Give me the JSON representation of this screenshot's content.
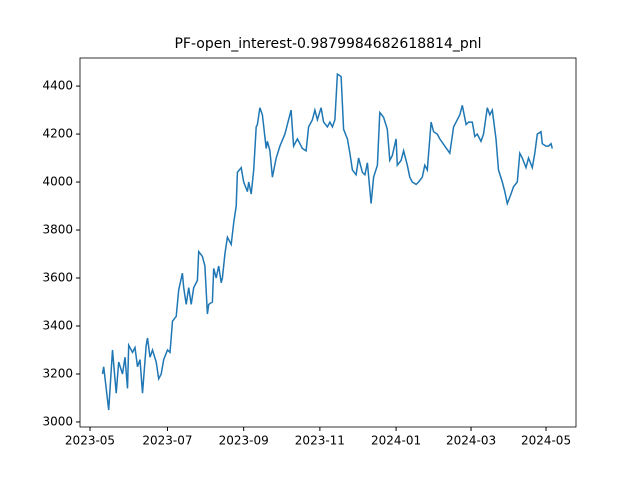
{
  "chart_data": {
    "type": "line",
    "title": "PF-open_interest-0.9879984682618814_pnl",
    "x": [
      10,
      11,
      15,
      18,
      21,
      23,
      26,
      28,
      30,
      31,
      34,
      36,
      38,
      40,
      42,
      45,
      46,
      48,
      50,
      53,
      55,
      57,
      59,
      62,
      64,
      66,
      69,
      71,
      74,
      75,
      77,
      79,
      81,
      83,
      86,
      87,
      90,
      92,
      94,
      95,
      98,
      99,
      101,
      103,
      105,
      106,
      108,
      110,
      113,
      115,
      117,
      118,
      121,
      123,
      126,
      127,
      129,
      131,
      133,
      134,
      136,
      138,
      141,
      142,
      144,
      146,
      149,
      152,
      156,
      161,
      163,
      166,
      168,
      170,
      173,
      175,
      178,
      180,
      182,
      185,
      187,
      190,
      192,
      194,
      196,
      198,
      201,
      203,
      206,
      208,
      210,
      213,
      215,
      218,
      220,
      222,
      225,
      227,
      230,
      232,
      235,
      238,
      240,
      242,
      245,
      246,
      249,
      251,
      254,
      256,
      258,
      261,
      263,
      266,
      268,
      270,
      273,
      275,
      278,
      280,
      284,
      288,
      291,
      294,
      296,
      298,
      301,
      303,
      306,
      308,
      310,
      313,
      315,
      318,
      320,
      322,
      325,
      327,
      330,
      332,
      334,
      337,
      339,
      342,
      344,
      346,
      349,
      351,
      354,
      356,
      358,
      361,
      362,
      365,
      367,
      369,
      370
    ],
    "series": [
      {
        "color": "#1f77b4",
        "values": [
          3200,
          3230,
          3050,
          3300,
          3120,
          3250,
          3200,
          3270,
          3140,
          3320,
          3290,
          3310,
          3230,
          3260,
          3120,
          3320,
          3350,
          3270,
          3300,
          3250,
          3180,
          3200,
          3260,
          3300,
          3290,
          3420,
          3440,
          3550,
          3620,
          3560,
          3490,
          3560,
          3490,
          3560,
          3590,
          3710,
          3690,
          3650,
          3450,
          3490,
          3500,
          3640,
          3600,
          3650,
          3580,
          3600,
          3700,
          3770,
          3740,
          3830,
          3900,
          4040,
          4060,
          4000,
          3960,
          4000,
          3950,
          4050,
          4230,
          4240,
          4310,
          4280,
          4140,
          4170,
          4130,
          4020,
          4100,
          4150,
          4200,
          4300,
          4150,
          4180,
          4160,
          4140,
          4130,
          4230,
          4260,
          4300,
          4260,
          4310,
          4250,
          4230,
          4250,
          4230,
          4260,
          4450,
          4440,
          4220,
          4180,
          4120,
          4050,
          4030,
          4100,
          4040,
          4030,
          4080,
          3910,
          4020,
          4070,
          4290,
          4270,
          4220,
          4090,
          4110,
          4180,
          4070,
          4090,
          4130,
          4070,
          4020,
          4000,
          3990,
          4000,
          4020,
          4070,
          4050,
          4250,
          4210,
          4200,
          4180,
          4150,
          4120,
          4230,
          4260,
          4280,
          4320,
          4240,
          4250,
          4250,
          4190,
          4200,
          4170,
          4200,
          4310,
          4280,
          4300,
          4180,
          4050,
          4000,
          3960,
          3910,
          3950,
          3980,
          4000,
          4120,
          4100,
          4060,
          4100,
          4060,
          4120,
          4200,
          4210,
          4160,
          4150,
          4150,
          4160,
          4140
        ]
      }
    ],
    "xlim": [
      -8,
      389
    ],
    "xticks": [
      {
        "value": 0,
        "label": "2023-05"
      },
      {
        "value": 62,
        "label": "2023-07"
      },
      {
        "value": 123,
        "label": "2023-09"
      },
      {
        "value": 184,
        "label": "2023-11"
      },
      {
        "value": 245,
        "label": "2024-01"
      },
      {
        "value": 305,
        "label": "2024-03"
      },
      {
        "value": 365,
        "label": "2024-05"
      }
    ],
    "ylim": [
      2979,
      4517
    ],
    "yticks": [
      3000,
      3200,
      3400,
      3600,
      3800,
      4000,
      4200,
      4400
    ]
  }
}
